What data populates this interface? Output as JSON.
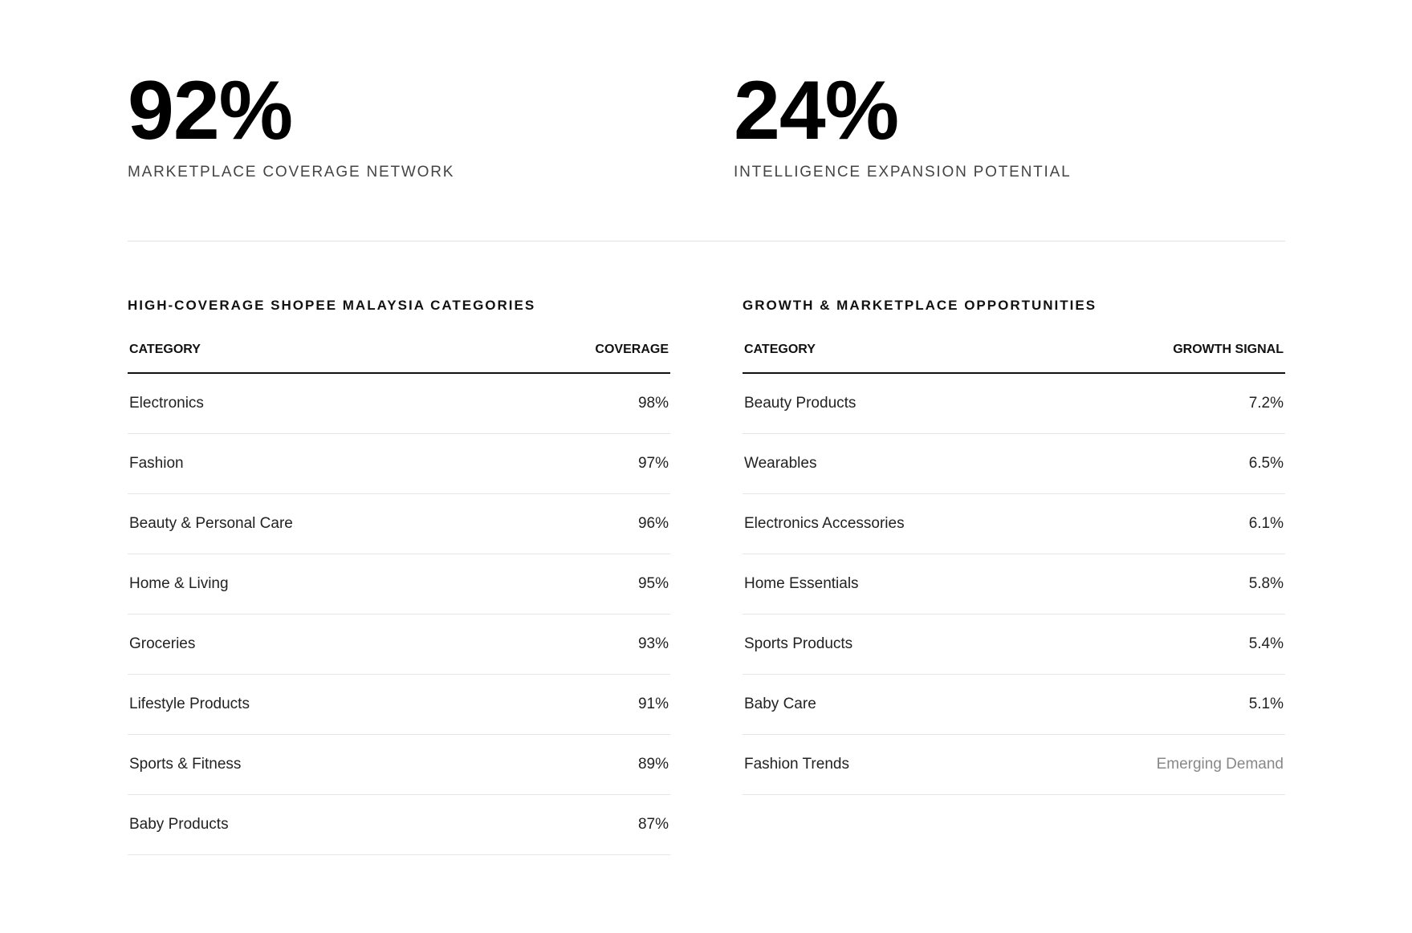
{
  "stats": [
    {
      "value": "92%",
      "label": "MARKETPLACE COVERAGE NETWORK"
    },
    {
      "value": "24%",
      "label": "INTELLIGENCE EXPANSION POTENTIAL"
    }
  ],
  "tables": [
    {
      "title": "HIGH-COVERAGE SHOPEE MALAYSIA CATEGORIES",
      "headers": [
        "CATEGORY",
        "COVERAGE"
      ],
      "rows": [
        [
          "Electronics",
          "98%"
        ],
        [
          "Fashion",
          "97%"
        ],
        [
          "Beauty & Personal Care",
          "96%"
        ],
        [
          "Home & Living",
          "95%"
        ],
        [
          "Groceries",
          "93%"
        ],
        [
          "Lifestyle Products",
          "91%"
        ],
        [
          "Sports & Fitness",
          "89%"
        ],
        [
          "Baby Products",
          "87%"
        ]
      ]
    },
    {
      "title": "GROWTH & MARKETPLACE OPPORTUNITIES",
      "headers": [
        "CATEGORY",
        "GROWTH SIGNAL"
      ],
      "rows": [
        [
          "Beauty Products",
          "7.2%"
        ],
        [
          "Wearables",
          "6.5%"
        ],
        [
          "Electronics Accessories",
          "6.1%"
        ],
        [
          "Home Essentials",
          "5.8%"
        ],
        [
          "Sports Products",
          "5.4%"
        ],
        [
          "Baby Care",
          "5.1%"
        ],
        [
          "Fashion Trends",
          "Emerging Demand"
        ]
      ]
    }
  ]
}
